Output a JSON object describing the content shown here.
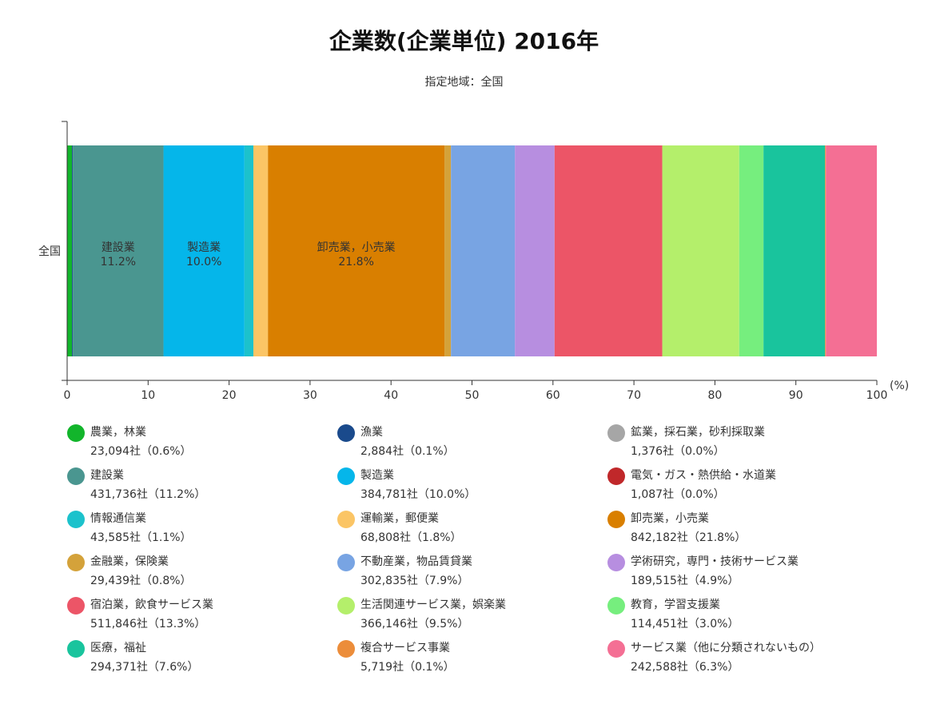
{
  "chart_data": {
    "type": "bar",
    "orientation": "horizontal-stacked-100",
    "title": "企業数(企業単位) 2016年",
    "subtitle": "指定地域：全国",
    "categories": [
      "全国"
    ],
    "x_unit": "(%)",
    "xlim": [
      0,
      100
    ],
    "x_ticks": [
      "0",
      "10",
      "20",
      "30",
      "40",
      "50",
      "60",
      "70",
      "80",
      "90",
      "100"
    ],
    "series": [
      {
        "name": "農業，林業",
        "value_label": "23,094社（0.6%）",
        "values": [
          0.6
        ],
        "color": "#12b52b"
      },
      {
        "name": "漁業",
        "value_label": "2,884社（0.1%）",
        "values": [
          0.1
        ],
        "color": "#1a4a8c"
      },
      {
        "name": "鉱業，採石業，砂利採取業",
        "value_label": "1,376社（0.0%）",
        "values": [
          0.0
        ],
        "color": "#a6a6a6"
      },
      {
        "name": "建設業",
        "value_label": "431,736社（11.2%）",
        "values": [
          11.2
        ],
        "color": "#4a9690",
        "bar_label": "11.2%"
      },
      {
        "name": "製造業",
        "value_label": "384,781社（10.0%）",
        "values": [
          10.0
        ],
        "color": "#05b6ea",
        "bar_label": "10.0%"
      },
      {
        "name": "電気・ガス・熱供給・水道業",
        "value_label": "1,087社（0.0%）",
        "values": [
          0.0
        ],
        "color": "#c0282a"
      },
      {
        "name": "情報通信業",
        "value_label": "43,585社（1.1%）",
        "values": [
          1.1
        ],
        "color": "#1cc2cc"
      },
      {
        "name": "運輸業，郵便業",
        "value_label": "68,808社（1.8%）",
        "values": [
          1.8
        ],
        "color": "#fbc565"
      },
      {
        "name": "卸売業，小売業",
        "value_label": "842,182社（21.8%）",
        "values": [
          21.8
        ],
        "color": "#d97f00",
        "bar_label": "21.8%"
      },
      {
        "name": "金融業，保険業",
        "value_label": "29,439社（0.8%）",
        "values": [
          0.8
        ],
        "color": "#d4a23a"
      },
      {
        "name": "不動産業，物品賃貸業",
        "value_label": "302,835社（7.9%）",
        "values": [
          7.9
        ],
        "color": "#78a4e3"
      },
      {
        "name": "学術研究，専門・技術サービス業",
        "value_label": "189,515社（4.9%）",
        "values": [
          4.9
        ],
        "color": "#b78ee0"
      },
      {
        "name": "宿泊業，飲食サービス業",
        "value_label": "511,846社（13.3%）",
        "values": [
          13.3
        ],
        "color": "#ec5567"
      },
      {
        "name": "生活関連サービス業，娯楽業",
        "value_label": "366,146社（9.5%）",
        "values": [
          9.5
        ],
        "color": "#b4ef6b"
      },
      {
        "name": "教育，学習支援業",
        "value_label": "114,451社（3.0%）",
        "values": [
          3.0
        ],
        "color": "#76ee7e"
      },
      {
        "name": "医療，福祉",
        "value_label": "294,371社（7.6%）",
        "values": [
          7.6
        ],
        "color": "#19c49d"
      },
      {
        "name": "複合サービス事業",
        "value_label": "5,719社（0.1%）",
        "values": [
          0.1
        ],
        "color": "#ec8d3a"
      },
      {
        "name": "サービス業（他に分類されないもの）",
        "value_label": "242,588社（6.3%）",
        "values": [
          6.3
        ],
        "color": "#f46f94"
      }
    ],
    "legend_position": "bottom",
    "grid": false
  }
}
